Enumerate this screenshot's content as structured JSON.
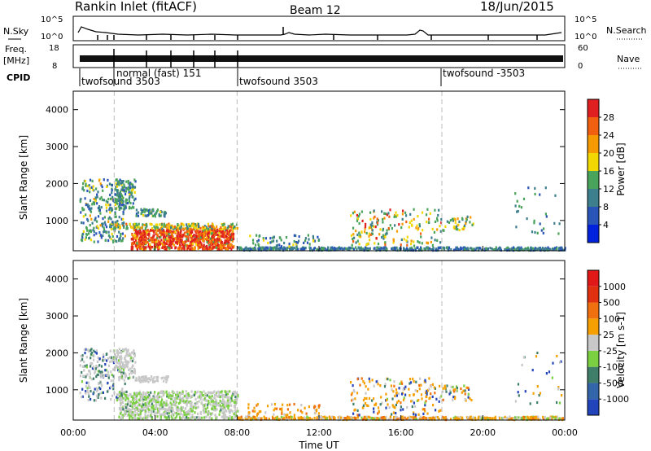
{
  "header": {
    "title": "Rankin Inlet (fitACF)",
    "beam": "Beam 12",
    "date": "18/Jun/2015"
  },
  "top_panels": {
    "nsky_label": "N.Sky",
    "nsky_ticks": [
      "10^5",
      "10^0"
    ],
    "nsearch_label": "N.Search",
    "nsearch_ticks": [
      "10^5",
      "10^0"
    ],
    "freq_label_1": "Freq.",
    "freq_label_2": "[MHz]",
    "freq_ticks": [
      "18",
      "8"
    ],
    "nave_label": "Nave",
    "nave_ticks": [
      "60",
      "0"
    ],
    "cpid_label": "CPID",
    "cpid_segments": [
      {
        "label": "twofsound 3503",
        "start_hour": 0.0,
        "row": 1
      },
      {
        "label": "normal (fast) 151",
        "start_hour": 2.0,
        "row": 0
      },
      {
        "label": "twofsound 3503",
        "start_hour": 8.0,
        "row": 1
      },
      {
        "label": "twofsound -3503",
        "start_hour": 18.0,
        "row": 0
      }
    ]
  },
  "chart_data": [
    {
      "type": "heatmap",
      "ylabel": "Slant Range [km]",
      "ylim": [
        180,
        4500
      ],
      "yticks": [
        "4000",
        "3000",
        "2000",
        "1000"
      ],
      "colorbar_label": "Power [dB]",
      "colorbar_ticks": [
        "28",
        "24",
        "20",
        "16",
        "12",
        "8",
        "4"
      ],
      "colorbar_colors": [
        "#0022dd",
        "#2a55b8",
        "#3d7f8c",
        "#4aa35a",
        "#f2d800",
        "#f59a00",
        "#f06010",
        "#e02020"
      ],
      "dashed_lines_hours": [
        2.0,
        8.0,
        18.0
      ]
    },
    {
      "type": "heatmap",
      "ylabel": "Slant Range [km]",
      "xlabel": "Time UT",
      "xlim": [
        0,
        24
      ],
      "xticks": [
        "00:00",
        "04:00",
        "08:00",
        "12:00",
        "16:00",
        "20:00",
        "00:00"
      ],
      "ylim": [
        180,
        4500
      ],
      "yticks": [
        "4000",
        "3000",
        "2000",
        "1000"
      ],
      "colorbar_label": "Velocity [m s-1]",
      "colorbar_ticks": [
        "1000",
        "500",
        "100",
        "25",
        "-25",
        "-100",
        "-500",
        "-1000"
      ],
      "colorbar_colors": [
        "#2244bb",
        "#3366a8",
        "#3f7f6a",
        "#7ad040",
        "#c8c8c8",
        "#f5a000",
        "#f07010",
        "#e03010",
        "#e01818"
      ],
      "dashed_lines_hours": [
        2.0,
        8.0,
        18.0
      ]
    }
  ]
}
